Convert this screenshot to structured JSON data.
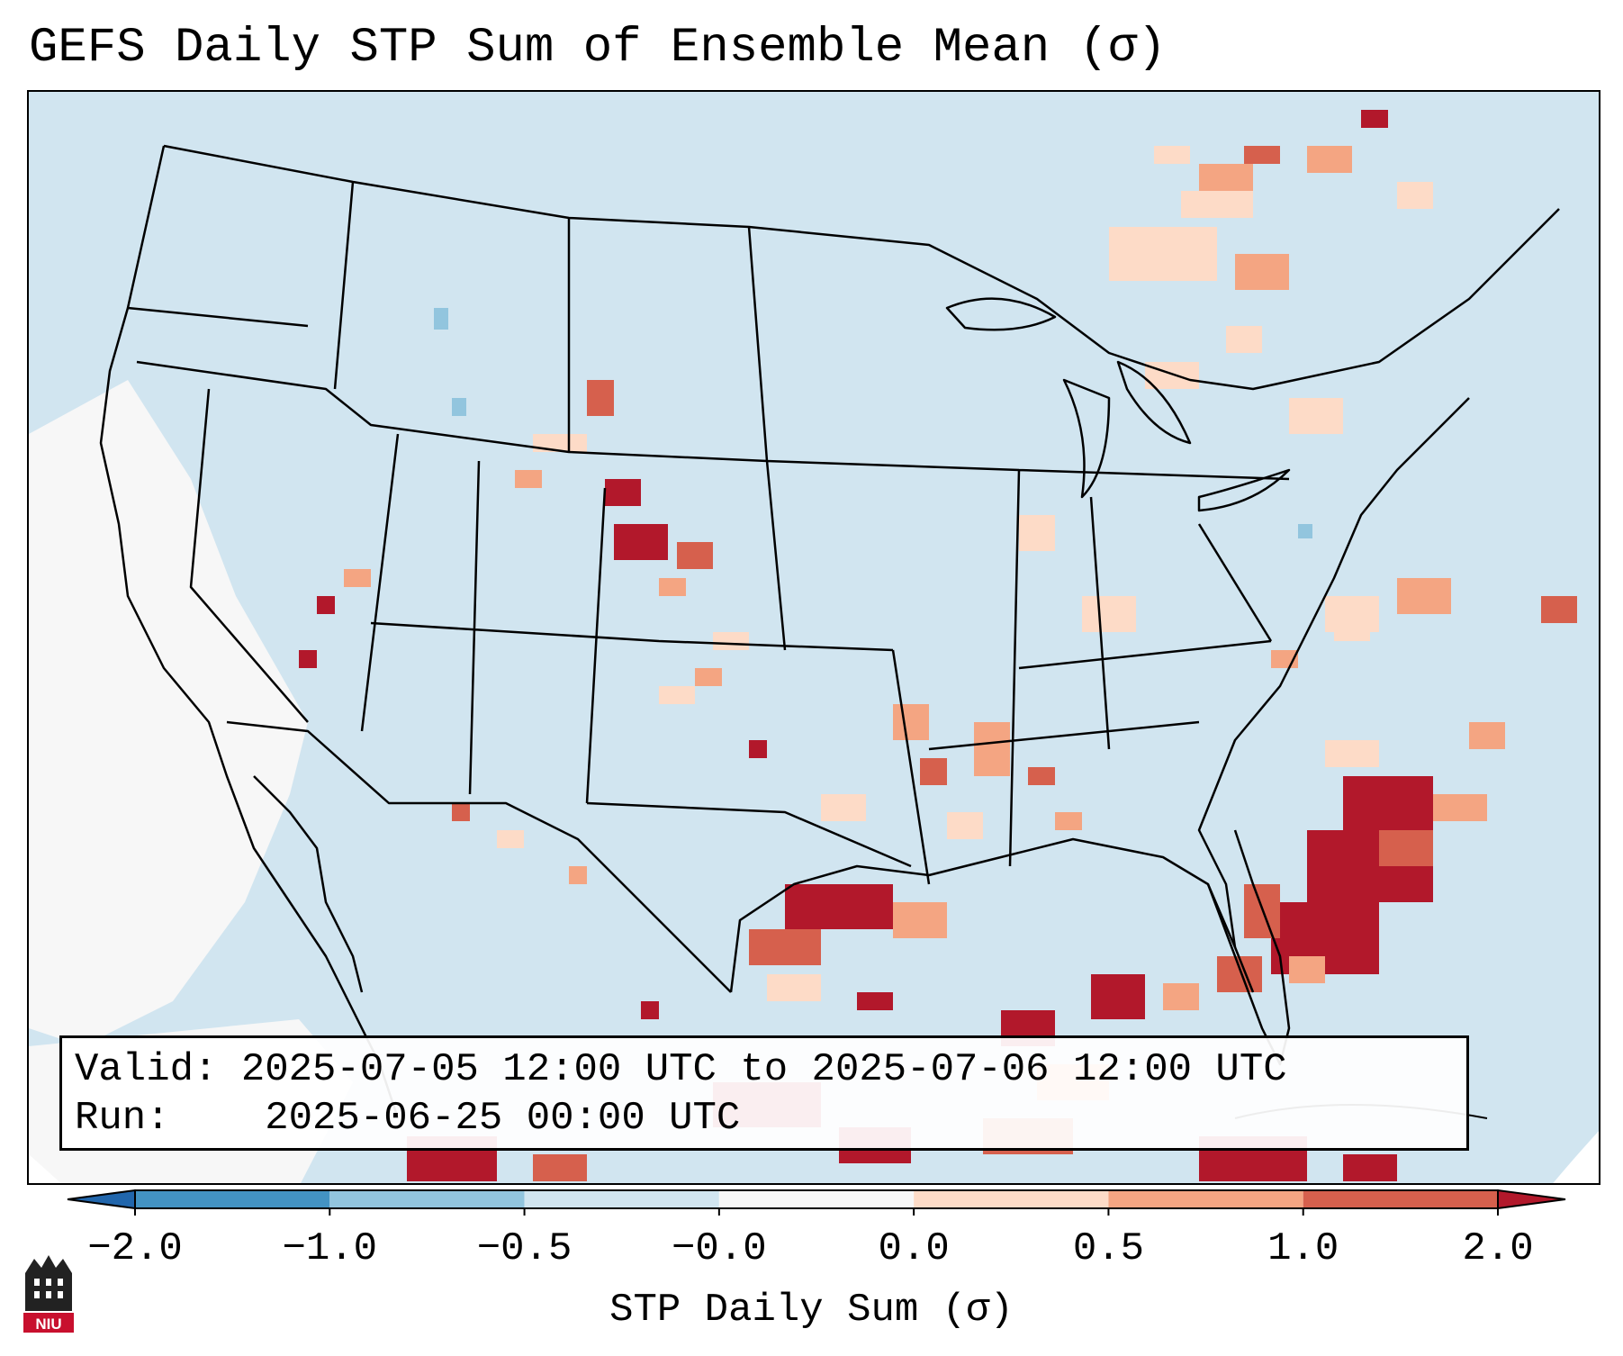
{
  "title": "GEFS Daily STP Sum of Ensemble Mean (σ)",
  "info": {
    "valid_label": "Valid:",
    "valid_value": "2025-07-05 12:00 UTC to 2025-07-06 12:00 UTC",
    "run_label": "Run:",
    "run_value": "2025-06-25 00:00 UTC"
  },
  "colorbar": {
    "label": "STP Daily Sum (σ)",
    "ticks": [
      "−2.0",
      "−1.0",
      "−0.5",
      "−0.0",
      "0.0",
      "0.5",
      "1.0",
      "2.0"
    ],
    "bins": [
      {
        "range": "< −2.0",
        "color": "#2166ac"
      },
      {
        "range": "−2.0 to −1.0",
        "color": "#4393c3"
      },
      {
        "range": "−1.0 to −0.5",
        "color": "#92c5de"
      },
      {
        "range": "−0.5 to −0.0",
        "color": "#d1e5f0"
      },
      {
        "range": "−0.0 to 0.0",
        "color": "#f7f7f7"
      },
      {
        "range": "0.0 to 0.5",
        "color": "#fddbc7"
      },
      {
        "range": "0.5 to 1.0",
        "color": "#f4a582"
      },
      {
        "range": "1.0 to 2.0",
        "color": "#d6604d"
      },
      {
        "range": "> 2.0",
        "color": "#b2182b"
      }
    ]
  },
  "logo": {
    "text": "NIU"
  },
  "colors": {
    "map_background": "#d1e5f0",
    "outside_domain": "#ffffff"
  }
}
